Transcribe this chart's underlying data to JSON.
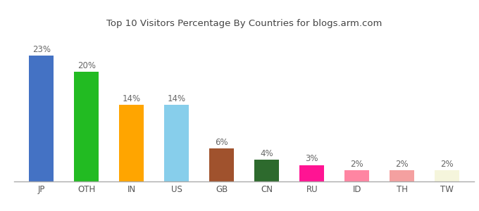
{
  "categories": [
    "JP",
    "OTH",
    "IN",
    "US",
    "GB",
    "CN",
    "RU",
    "ID",
    "TH",
    "TW"
  ],
  "values": [
    23,
    20,
    14,
    14,
    6,
    4,
    3,
    2,
    2,
    2
  ],
  "bar_colors": [
    "#4472c4",
    "#22bb22",
    "#ffa500",
    "#87ceeb",
    "#a0522d",
    "#2d6a2d",
    "#ff1493",
    "#ff85a2",
    "#f4a0a0",
    "#f5f5dc"
  ],
  "title": "Top 10 Visitors Percentage By Countries for blogs.arm.com",
  "ylim": [
    0,
    27
  ],
  "background_color": "#ffffff",
  "label_fontsize": 8.5,
  "tick_fontsize": 8.5,
  "title_fontsize": 9.5,
  "bar_width": 0.55
}
